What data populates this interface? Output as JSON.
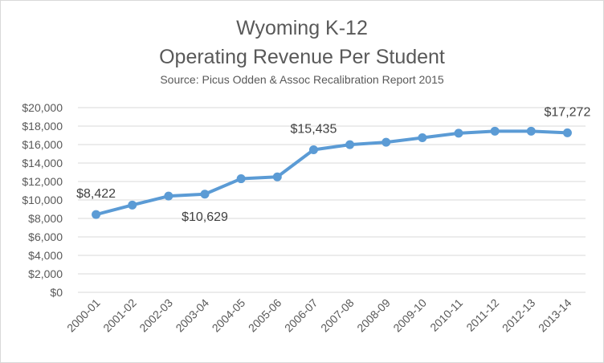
{
  "chart_data": {
    "type": "line",
    "title": [
      "Wyoming K-12",
      "Operating Revenue Per Student"
    ],
    "subtitle": "Source: Picus Odden & Assoc Recalibration Report 2015",
    "categories": [
      "2000-01",
      "2001-02",
      "2002-03",
      "2003-04",
      "2004-05",
      "2005-06",
      "2006-07",
      "2007-08",
      "2008-09",
      "2009-10",
      "2010-11",
      "2011-12",
      "2012-13",
      "2013-14"
    ],
    "series": [
      {
        "values": [
          8422,
          9450,
          10420,
          10629,
          12300,
          12500,
          15435,
          15990,
          16250,
          16740,
          17230,
          17450,
          17450,
          17272
        ]
      }
    ],
    "ylim": [
      0,
      20000
    ],
    "yticks": [
      "$0",
      "$2,000",
      "$4,000",
      "$6,000",
      "$8,000",
      "$10,000",
      "$12,000",
      "$14,000",
      "$16,000",
      "$18,000",
      "$20,000"
    ],
    "data_labels": [
      {
        "index": 0,
        "text": "$8,422",
        "position": "above"
      },
      {
        "index": 3,
        "text": "$10,629",
        "position": "below"
      },
      {
        "index": 6,
        "text": "$15,435",
        "position": "above"
      },
      {
        "index": 13,
        "text": "$17,272",
        "position": "above"
      }
    ],
    "grid": true,
    "legend": "none",
    "colors": {
      "line": "#5b9bd5",
      "grid": "#d9d9d9",
      "text": "#595959"
    }
  }
}
